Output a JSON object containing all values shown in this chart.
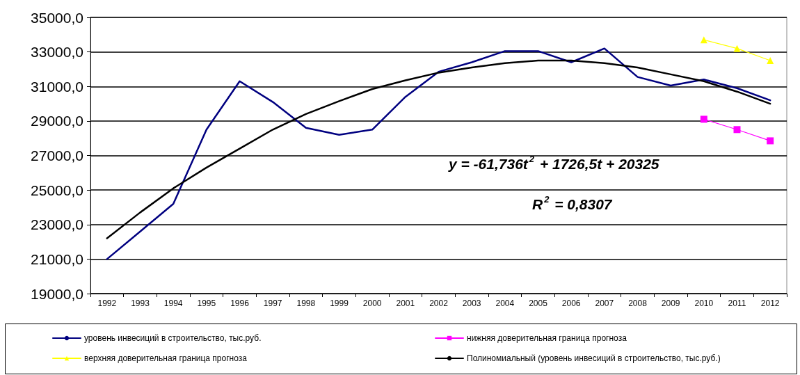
{
  "chart_data": {
    "type": "line",
    "categories": [
      "1992",
      "1993",
      "1994",
      "1995",
      "1996",
      "1997",
      "1998",
      "1999",
      "2000",
      "2001",
      "2002",
      "2003",
      "2004",
      "2005",
      "2006",
      "2007",
      "2008",
      "2009",
      "2010",
      "2011",
      "2012"
    ],
    "series": [
      {
        "name": "уровень инвесиций в строительство, тыс.руб.",
        "color": "#000080",
        "marker": "none",
        "values": [
          21000,
          22600,
          24200,
          28500,
          31300,
          30100,
          28600,
          28200,
          28500,
          30400,
          31850,
          32400,
          33050,
          33050,
          32400,
          33200,
          31550,
          31050,
          31400,
          30900,
          30200
        ]
      },
      {
        "name": "нижняя доверительная граница прогноза",
        "color": "#ff00ff",
        "marker": "square",
        "values": [
          null,
          null,
          null,
          null,
          null,
          null,
          null,
          null,
          null,
          null,
          null,
          null,
          null,
          null,
          null,
          null,
          null,
          null,
          29100,
          28500,
          27850
        ]
      },
      {
        "name": "верхняя доверительная граница прогноза",
        "color": "#ffff00",
        "marker": "triangle",
        "values": [
          null,
          null,
          null,
          null,
          null,
          null,
          null,
          null,
          null,
          null,
          null,
          null,
          null,
          null,
          null,
          null,
          null,
          null,
          33700,
          33200,
          32500
        ]
      },
      {
        "name": "Полиномиальный (уровень инвесиций в строительство, тыс.руб.)",
        "color": "#000000",
        "marker": "none",
        "values": [
          22200,
          23700,
          25100,
          26300,
          27400,
          28500,
          29400,
          30150,
          30850,
          31350,
          31800,
          32100,
          32350,
          32500,
          32500,
          32350,
          32100,
          31700,
          31300,
          30700,
          30000
        ]
      }
    ],
    "ylim": [
      19000,
      35000
    ],
    "yticks": [
      {
        "value": 19000,
        "label": "19000,0"
      },
      {
        "value": 21000,
        "label": "21000,0"
      },
      {
        "value": 23000,
        "label": "23000,0"
      },
      {
        "value": 25000,
        "label": "25000,0"
      },
      {
        "value": 27000,
        "label": "27000,0"
      },
      {
        "value": 29000,
        "label": "29000,0"
      },
      {
        "value": 31000,
        "label": "31000,0"
      },
      {
        "value": 33000,
        "label": "33000,0"
      },
      {
        "value": 35000,
        "label": "35000,0"
      }
    ],
    "grid": "y",
    "legend": "bottom",
    "line_style": "solid",
    "annotations": [
      "y = -61,736t$^{2}$ + 1726,5t + 20325",
      "R$^{2}$ = 0,8307"
    ]
  }
}
